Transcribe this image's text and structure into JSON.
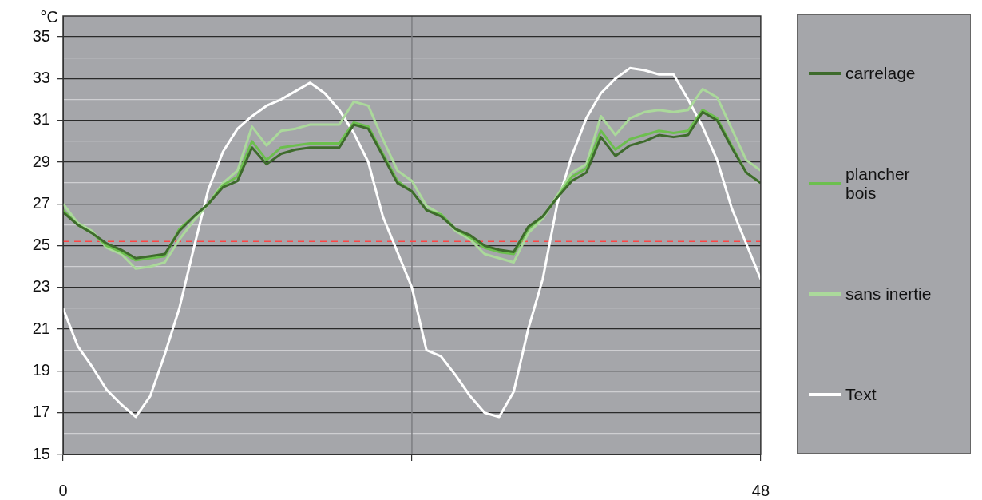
{
  "chart_data": {
    "type": "line",
    "ylabel": "°C",
    "x": [
      0,
      1,
      2,
      3,
      4,
      5,
      6,
      7,
      8,
      9,
      10,
      11,
      12,
      13,
      14,
      15,
      16,
      17,
      18,
      19,
      20,
      21,
      22,
      23,
      24,
      25,
      26,
      27,
      28,
      29,
      30,
      31,
      32,
      33,
      34,
      35,
      36,
      37,
      38,
      39,
      40,
      41,
      42,
      43,
      44,
      45,
      46,
      47,
      48
    ],
    "series": [
      {
        "name": "carrelage",
        "color": "#3e6b2c",
        "values": [
          26.6,
          26.0,
          25.6,
          25.1,
          24.8,
          24.4,
          24.5,
          24.6,
          25.7,
          26.4,
          27.0,
          27.8,
          28.1,
          29.7,
          28.9,
          29.4,
          29.6,
          29.7,
          29.7,
          29.7,
          30.8,
          30.6,
          29.3,
          28.0,
          27.6,
          26.7,
          26.4,
          25.8,
          25.5,
          25.0,
          24.8,
          24.7,
          25.9,
          26.4,
          27.3,
          28.1,
          28.5,
          30.2,
          29.3,
          29.8,
          30.0,
          30.3,
          30.2,
          30.3,
          31.4,
          31.0,
          29.7,
          28.5,
          28.0
        ]
      },
      {
        "name": "plancher bois",
        "color": "#6cbf4e",
        "values": [
          26.7,
          26.0,
          25.6,
          25.0,
          24.7,
          24.3,
          24.4,
          24.5,
          25.8,
          26.4,
          27.0,
          27.9,
          28.3,
          30.0,
          29.1,
          29.7,
          29.8,
          29.9,
          29.9,
          29.9,
          30.9,
          30.7,
          29.4,
          28.1,
          27.6,
          26.7,
          26.5,
          25.8,
          25.4,
          24.9,
          24.7,
          24.6,
          25.8,
          26.4,
          27.3,
          28.3,
          28.7,
          30.5,
          29.6,
          30.1,
          30.3,
          30.5,
          30.4,
          30.5,
          31.5,
          31.1,
          29.8,
          28.5,
          28.0
        ]
      },
      {
        "name": "sans inertie",
        "color": "#abd99b",
        "values": [
          27.0,
          26.1,
          25.7,
          24.9,
          24.6,
          23.9,
          24.0,
          24.2,
          25.3,
          26.2,
          27.0,
          28.0,
          28.6,
          30.7,
          29.8,
          30.5,
          30.6,
          30.8,
          30.8,
          30.8,
          31.9,
          31.7,
          30.1,
          28.6,
          28.1,
          26.9,
          26.5,
          25.7,
          25.3,
          24.6,
          24.4,
          24.2,
          25.6,
          26.3,
          27.4,
          28.5,
          28.9,
          31.2,
          30.3,
          31.1,
          31.4,
          31.5,
          31.4,
          31.5,
          32.5,
          32.1,
          30.6,
          29.1,
          28.6
        ]
      },
      {
        "name": "Text",
        "color": "#ffffff",
        "values": [
          22.0,
          20.2,
          19.2,
          18.1,
          17.4,
          16.8,
          17.8,
          19.8,
          22.0,
          24.9,
          27.7,
          29.5,
          30.6,
          31.2,
          31.7,
          32.0,
          32.4,
          32.8,
          32.3,
          31.5,
          30.4,
          29.0,
          26.4,
          24.7,
          23.0,
          20.0,
          19.7,
          18.8,
          17.8,
          17.0,
          16.8,
          18.0,
          21.0,
          23.4,
          27.0,
          29.3,
          31.1,
          32.3,
          33.0,
          33.5,
          33.4,
          33.2,
          33.2,
          32.0,
          30.7,
          29.1,
          26.8,
          25.1,
          23.4
        ]
      }
    ],
    "xlim": [
      0,
      48
    ],
    "xticks": [
      0,
      {
        "value": 24,
        "label": null
      },
      48
    ],
    "ylim": [
      15,
      36
    ],
    "yticks": [
      15,
      {
        "value": 16,
        "label": null
      },
      17,
      {
        "value": 18,
        "label": null
      },
      19,
      {
        "value": 20,
        "label": null
      },
      21,
      {
        "value": 22,
        "label": null
      },
      23,
      {
        "value": 24,
        "label": null
      },
      25,
      {
        "value": 26,
        "label": null
      },
      27,
      {
        "value": 28,
        "label": null
      },
      29,
      {
        "value": 30,
        "label": null
      },
      31,
      {
        "value": 32,
        "label": null
      },
      33,
      {
        "value": 34,
        "label": null
      },
      35
    ],
    "ref_lines": [
      {
        "axis": "x",
        "value": 24,
        "color": "#7d7e82",
        "line_style": "solid"
      },
      {
        "axis": "y",
        "value": 25.2,
        "color": "#ff4444",
        "line_style": "dashed"
      }
    ],
    "grid": "y",
    "legend": "right"
  }
}
